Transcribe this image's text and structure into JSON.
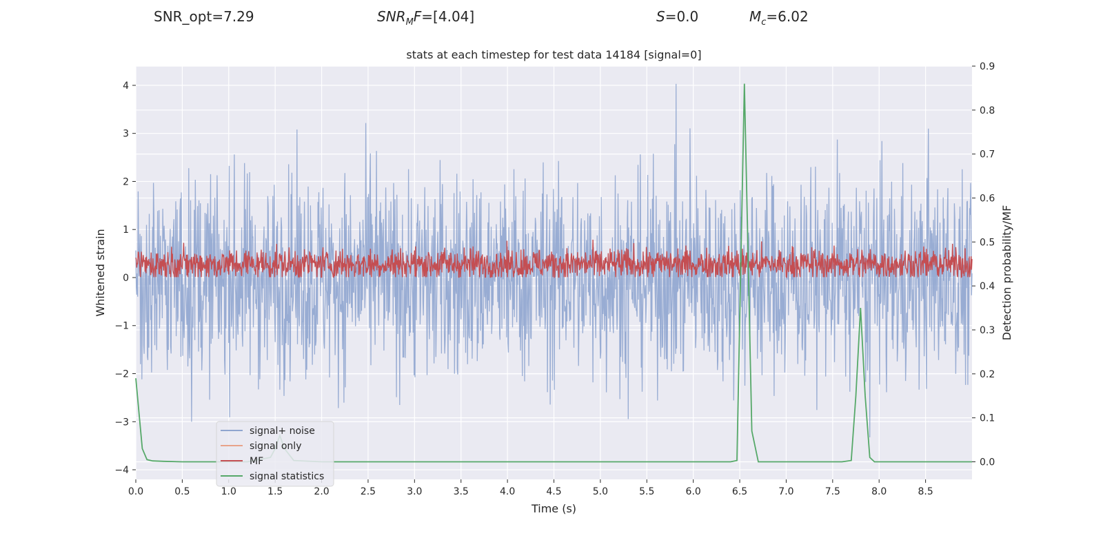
{
  "header": {
    "snr_opt": "SNR_opt=7.29",
    "snr_mf_main": "SNR",
    "snr_mf_sub": "M",
    "snr_mf_tail": "F",
    "snr_mf_value": "=[4.04]",
    "s_symbol": "S",
    "s_value": "=0.0",
    "mc_symbol": "M",
    "mc_sub": "c",
    "mc_value": "=6.02"
  },
  "chart_data": {
    "type": "line",
    "title": "stats at each timestep for test data 14184 [signal=0]",
    "xlabel": "Time (s)",
    "ylabel": "Whitened strain",
    "ylabel_right": "Detection probability/MF",
    "xlim": [
      0.0,
      9.0
    ],
    "ylim": [
      -4.2,
      4.4
    ],
    "ylim_right": [
      -0.04,
      0.9
    ],
    "xticks": [
      "0.0",
      "0.5",
      "1.0",
      "1.5",
      "2.0",
      "2.5",
      "3.0",
      "3.5",
      "4.0",
      "4.5",
      "5.0",
      "5.5",
      "6.0",
      "6.5",
      "7.0",
      "7.5",
      "8.0",
      "8.5"
    ],
    "yticks_left": [
      "4",
      "3",
      "2",
      "1",
      "0",
      "−1",
      "−2",
      "−3",
      "−4"
    ],
    "yticks_left_values": [
      4,
      3,
      2,
      1,
      0,
      -1,
      -2,
      -3,
      -4
    ],
    "yticks_right": [
      "0.9",
      "0.8",
      "0.7",
      "0.6",
      "0.5",
      "0.4",
      "0.3",
      "0.2",
      "0.1",
      "0.0"
    ],
    "yticks_right_values": [
      0.9,
      0.8,
      0.7,
      0.6,
      0.5,
      0.4,
      0.3,
      0.2,
      0.1,
      0.0
    ],
    "grid": true,
    "legend_position": "bottom-left",
    "series": [
      {
        "name": "signal+ noise",
        "color": "#8fa5cf",
        "axis": "left",
        "kind": "noise",
        "summary": {
          "center": 0.0,
          "typical_max": 2.6,
          "typical_min": -2.4,
          "peak_max": 4.03,
          "peak_min": -3.8
        }
      },
      {
        "name": "signal only",
        "color": "#e8a38a",
        "axis": "left",
        "kind": "flat",
        "values": []
      },
      {
        "name": "MF",
        "color": "#c44e52",
        "axis": "right",
        "kind": "noise",
        "summary": {
          "center": 0.45,
          "typical_max": 0.52,
          "typical_min": 0.42,
          "peak_max": 0.53,
          "peak_min": 0.42
        }
      },
      {
        "name": "signal statistics",
        "color": "#55a868",
        "axis": "right",
        "x": [
          0.0,
          0.07,
          0.12,
          0.18,
          0.3,
          0.5,
          0.8,
          1.2,
          1.45,
          1.5,
          1.55,
          1.6,
          1.7,
          2.0,
          3.0,
          4.0,
          5.0,
          6.0,
          6.4,
          6.47,
          6.55,
          6.63,
          6.7,
          7.0,
          7.5,
          7.6,
          7.7,
          7.75,
          7.8,
          7.85,
          7.9,
          7.95,
          8.2,
          9.0
        ],
        "values": [
          0.19,
          0.03,
          0.005,
          0.002,
          0.001,
          0.0,
          0.0,
          0.0,
          0.01,
          0.03,
          0.06,
          0.03,
          0.003,
          0.0,
          0.0,
          0.0,
          0.0,
          0.0,
          0.0,
          0.003,
          0.86,
          0.07,
          0.0,
          0.0,
          0.0,
          0.0,
          0.003,
          0.15,
          0.35,
          0.15,
          0.01,
          0.0,
          0.0,
          0.0
        ]
      }
    ]
  }
}
